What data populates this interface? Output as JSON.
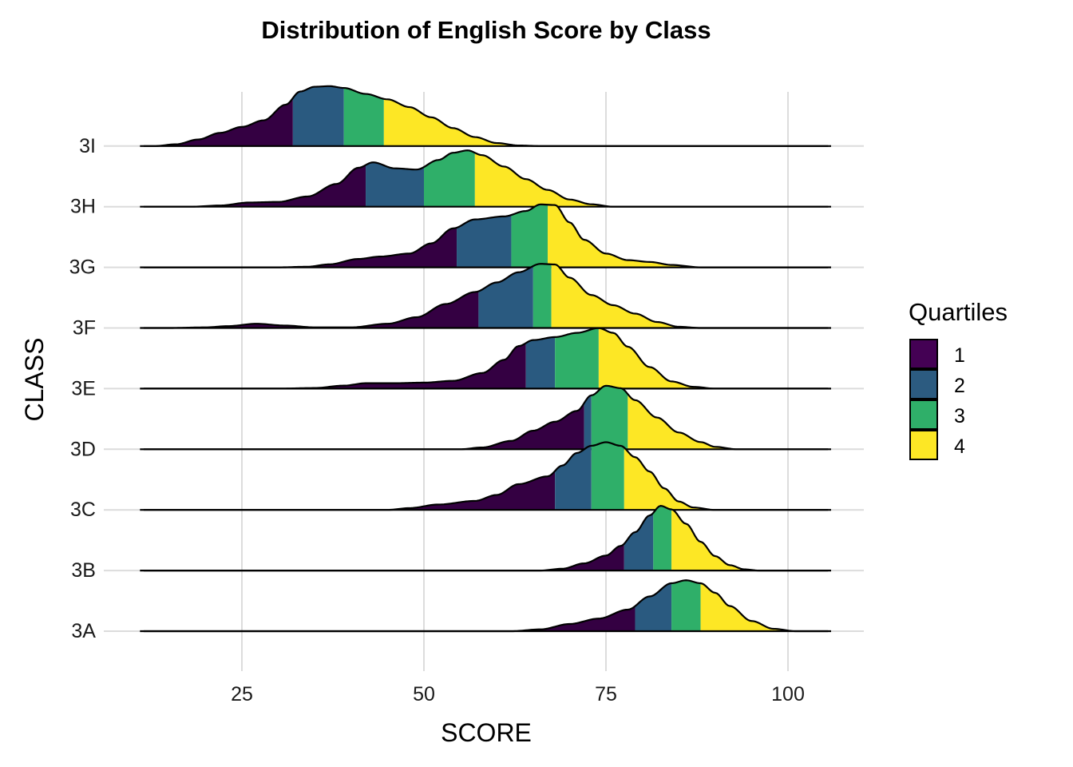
{
  "chart_data": {
    "type": "ridgeline",
    "title": "Distribution of English Score by Class",
    "xlabel": "SCORE",
    "ylabel": "CLASS",
    "xlim": [
      11,
      105.5
    ],
    "xticks": [
      25,
      50,
      75,
      100
    ],
    "grid": true,
    "legend": {
      "title": "Quartiles",
      "placement": "right",
      "items": [
        {
          "label": "1",
          "color": "#440154"
        },
        {
          "label": "2",
          "color": "#2C5B80"
        },
        {
          "label": "3",
          "color": "#2FAF69"
        },
        {
          "label": "4",
          "color": "#FDE725"
        }
      ]
    },
    "fill_colors": [
      "#340042",
      "#2A5A80",
      "#2FAF69",
      "#FDE725"
    ],
    "categories": [
      "3A",
      "3B",
      "3C",
      "3D",
      "3E",
      "3F",
      "3G",
      "3H",
      "3I"
    ],
    "series": [
      {
        "label": "3A",
        "quartiles": [
          79,
          84,
          88
        ],
        "density": [
          [
            11,
            0
          ],
          [
            55,
            0
          ],
          [
            62,
            0
          ],
          [
            66,
            0.03
          ],
          [
            70,
            0.12
          ],
          [
            74,
            0.21
          ],
          [
            78,
            0.36
          ],
          [
            81,
            0.58
          ],
          [
            84,
            0.8
          ],
          [
            86,
            0.85
          ],
          [
            88,
            0.8
          ],
          [
            90,
            0.64
          ],
          [
            92,
            0.42
          ],
          [
            95,
            0.17
          ],
          [
            98,
            0.04
          ],
          [
            101,
            0
          ],
          [
            105.5,
            0
          ]
        ]
      },
      {
        "label": "3B",
        "quartiles": [
          77.5,
          81.5,
          84
        ],
        "density": [
          [
            11,
            0
          ],
          [
            60,
            0
          ],
          [
            66,
            0
          ],
          [
            69,
            0.03
          ],
          [
            72,
            0.12
          ],
          [
            75,
            0.25
          ],
          [
            77,
            0.41
          ],
          [
            79,
            0.64
          ],
          [
            81,
            0.92
          ],
          [
            82.5,
            1.08
          ],
          [
            84,
            1.02
          ],
          [
            86,
            0.78
          ],
          [
            88,
            0.48
          ],
          [
            90,
            0.24
          ],
          [
            92,
            0.09
          ],
          [
            94,
            0.02
          ],
          [
            96,
            0
          ],
          [
            105.5,
            0
          ]
        ]
      },
      {
        "label": "3C",
        "quartiles": [
          68,
          73,
          77.5
        ],
        "density": [
          [
            11,
            0
          ],
          [
            45,
            0
          ],
          [
            48,
            0.03
          ],
          [
            52,
            0.09
          ],
          [
            57,
            0.15
          ],
          [
            60,
            0.25
          ],
          [
            63,
            0.43
          ],
          [
            67,
            0.56
          ],
          [
            69,
            0.74
          ],
          [
            71,
            0.95
          ],
          [
            73,
            1.07
          ],
          [
            75,
            1.13
          ],
          [
            77,
            1.07
          ],
          [
            79,
            0.88
          ],
          [
            81,
            0.64
          ],
          [
            83,
            0.36
          ],
          [
            85,
            0.14
          ],
          [
            87,
            0.04
          ],
          [
            90,
            0
          ],
          [
            105.5,
            0
          ]
        ]
      },
      {
        "label": "3D",
        "quartiles": [
          72,
          73,
          78
        ],
        "density": [
          [
            11,
            0
          ],
          [
            55,
            0
          ],
          [
            58,
            0.03
          ],
          [
            62,
            0.14
          ],
          [
            65,
            0.31
          ],
          [
            68,
            0.46
          ],
          [
            71,
            0.64
          ],
          [
            73,
            0.9
          ],
          [
            75,
            1.06
          ],
          [
            77,
            1.02
          ],
          [
            79,
            0.82
          ],
          [
            82,
            0.53
          ],
          [
            85,
            0.28
          ],
          [
            88,
            0.12
          ],
          [
            90,
            0.04
          ],
          [
            93,
            0
          ],
          [
            105.5,
            0
          ]
        ]
      },
      {
        "label": "3E",
        "quartiles": [
          64,
          68,
          74
        ],
        "density": [
          [
            11,
            0
          ],
          [
            30,
            0
          ],
          [
            35,
            0.01
          ],
          [
            39,
            0.05
          ],
          [
            42,
            0.09
          ],
          [
            46,
            0.09
          ],
          [
            50,
            0.1
          ],
          [
            54,
            0.13
          ],
          [
            58,
            0.26
          ],
          [
            61,
            0.48
          ],
          [
            63,
            0.71
          ],
          [
            65,
            0.81
          ],
          [
            68,
            0.86
          ],
          [
            71,
            0.93
          ],
          [
            74,
            1.01
          ],
          [
            76,
            0.93
          ],
          [
            78,
            0.7
          ],
          [
            81,
            0.36
          ],
          [
            84,
            0.12
          ],
          [
            87,
            0.03
          ],
          [
            90,
            0
          ],
          [
            105.5,
            0
          ]
        ]
      },
      {
        "label": "3F",
        "quartiles": [
          57.5,
          65,
          67.5
        ],
        "density": [
          [
            11,
            0
          ],
          [
            15,
            0
          ],
          [
            20,
            0.01
          ],
          [
            23,
            0.03
          ],
          [
            27,
            0.07
          ],
          [
            31,
            0.04
          ],
          [
            35,
            0.01
          ],
          [
            40,
            0.01
          ],
          [
            45,
            0.07
          ],
          [
            49,
            0.18
          ],
          [
            53,
            0.4
          ],
          [
            57,
            0.6
          ],
          [
            60,
            0.76
          ],
          [
            63,
            0.93
          ],
          [
            66,
            1.07
          ],
          [
            68,
            1.06
          ],
          [
            70,
            0.84
          ],
          [
            73,
            0.55
          ],
          [
            76,
            0.38
          ],
          [
            79,
            0.24
          ],
          [
            82,
            0.1
          ],
          [
            85,
            0.02
          ],
          [
            88,
            0
          ],
          [
            105.5,
            0
          ]
        ]
      },
      {
        "label": "3G",
        "quartiles": [
          54.5,
          62,
          67
        ],
        "density": [
          [
            11,
            0
          ],
          [
            30,
            0
          ],
          [
            34,
            0.01
          ],
          [
            37,
            0.05
          ],
          [
            41,
            0.14
          ],
          [
            44,
            0.18
          ],
          [
            48,
            0.23
          ],
          [
            51,
            0.4
          ],
          [
            54,
            0.65
          ],
          [
            57,
            0.8
          ],
          [
            61,
            0.85
          ],
          [
            64,
            0.94
          ],
          [
            66,
            1.05
          ],
          [
            68,
            1.04
          ],
          [
            70,
            0.75
          ],
          [
            72,
            0.46
          ],
          [
            75,
            0.23
          ],
          [
            78,
            0.12
          ],
          [
            81,
            0.09
          ],
          [
            84,
            0.04
          ],
          [
            88,
            0
          ],
          [
            105.5,
            0
          ]
        ]
      },
      {
        "label": "3H",
        "quartiles": [
          42,
          50,
          57
        ],
        "density": [
          [
            11,
            0
          ],
          [
            18,
            0
          ],
          [
            22,
            0.02
          ],
          [
            26,
            0.07
          ],
          [
            30,
            0.08
          ],
          [
            34,
            0.17
          ],
          [
            38,
            0.38
          ],
          [
            41,
            0.65
          ],
          [
            43,
            0.74
          ],
          [
            46,
            0.64
          ],
          [
            49,
            0.62
          ],
          [
            52,
            0.78
          ],
          [
            54,
            0.9
          ],
          [
            56,
            0.94
          ],
          [
            58,
            0.86
          ],
          [
            61,
            0.67
          ],
          [
            64,
            0.46
          ],
          [
            67,
            0.28
          ],
          [
            70,
            0.12
          ],
          [
            73,
            0.04
          ],
          [
            76,
            0
          ],
          [
            105.5,
            0
          ]
        ]
      },
      {
        "label": "3I",
        "quartiles": [
          32,
          39,
          44.5
        ],
        "density": [
          [
            11,
            0
          ],
          [
            13,
            0
          ],
          [
            16,
            0.03
          ],
          [
            19,
            0.11
          ],
          [
            22,
            0.22
          ],
          [
            25,
            0.32
          ],
          [
            28,
            0.43
          ],
          [
            31,
            0.69
          ],
          [
            33,
            0.91
          ],
          [
            35,
            0.99
          ],
          [
            37,
            1.0
          ],
          [
            39,
            0.97
          ],
          [
            42,
            0.87
          ],
          [
            45,
            0.78
          ],
          [
            48,
            0.65
          ],
          [
            51,
            0.48
          ],
          [
            54,
            0.3
          ],
          [
            57,
            0.15
          ],
          [
            60,
            0.05
          ],
          [
            63,
            0.01
          ],
          [
            66,
            0
          ],
          [
            105.5,
            0
          ]
        ]
      }
    ]
  }
}
